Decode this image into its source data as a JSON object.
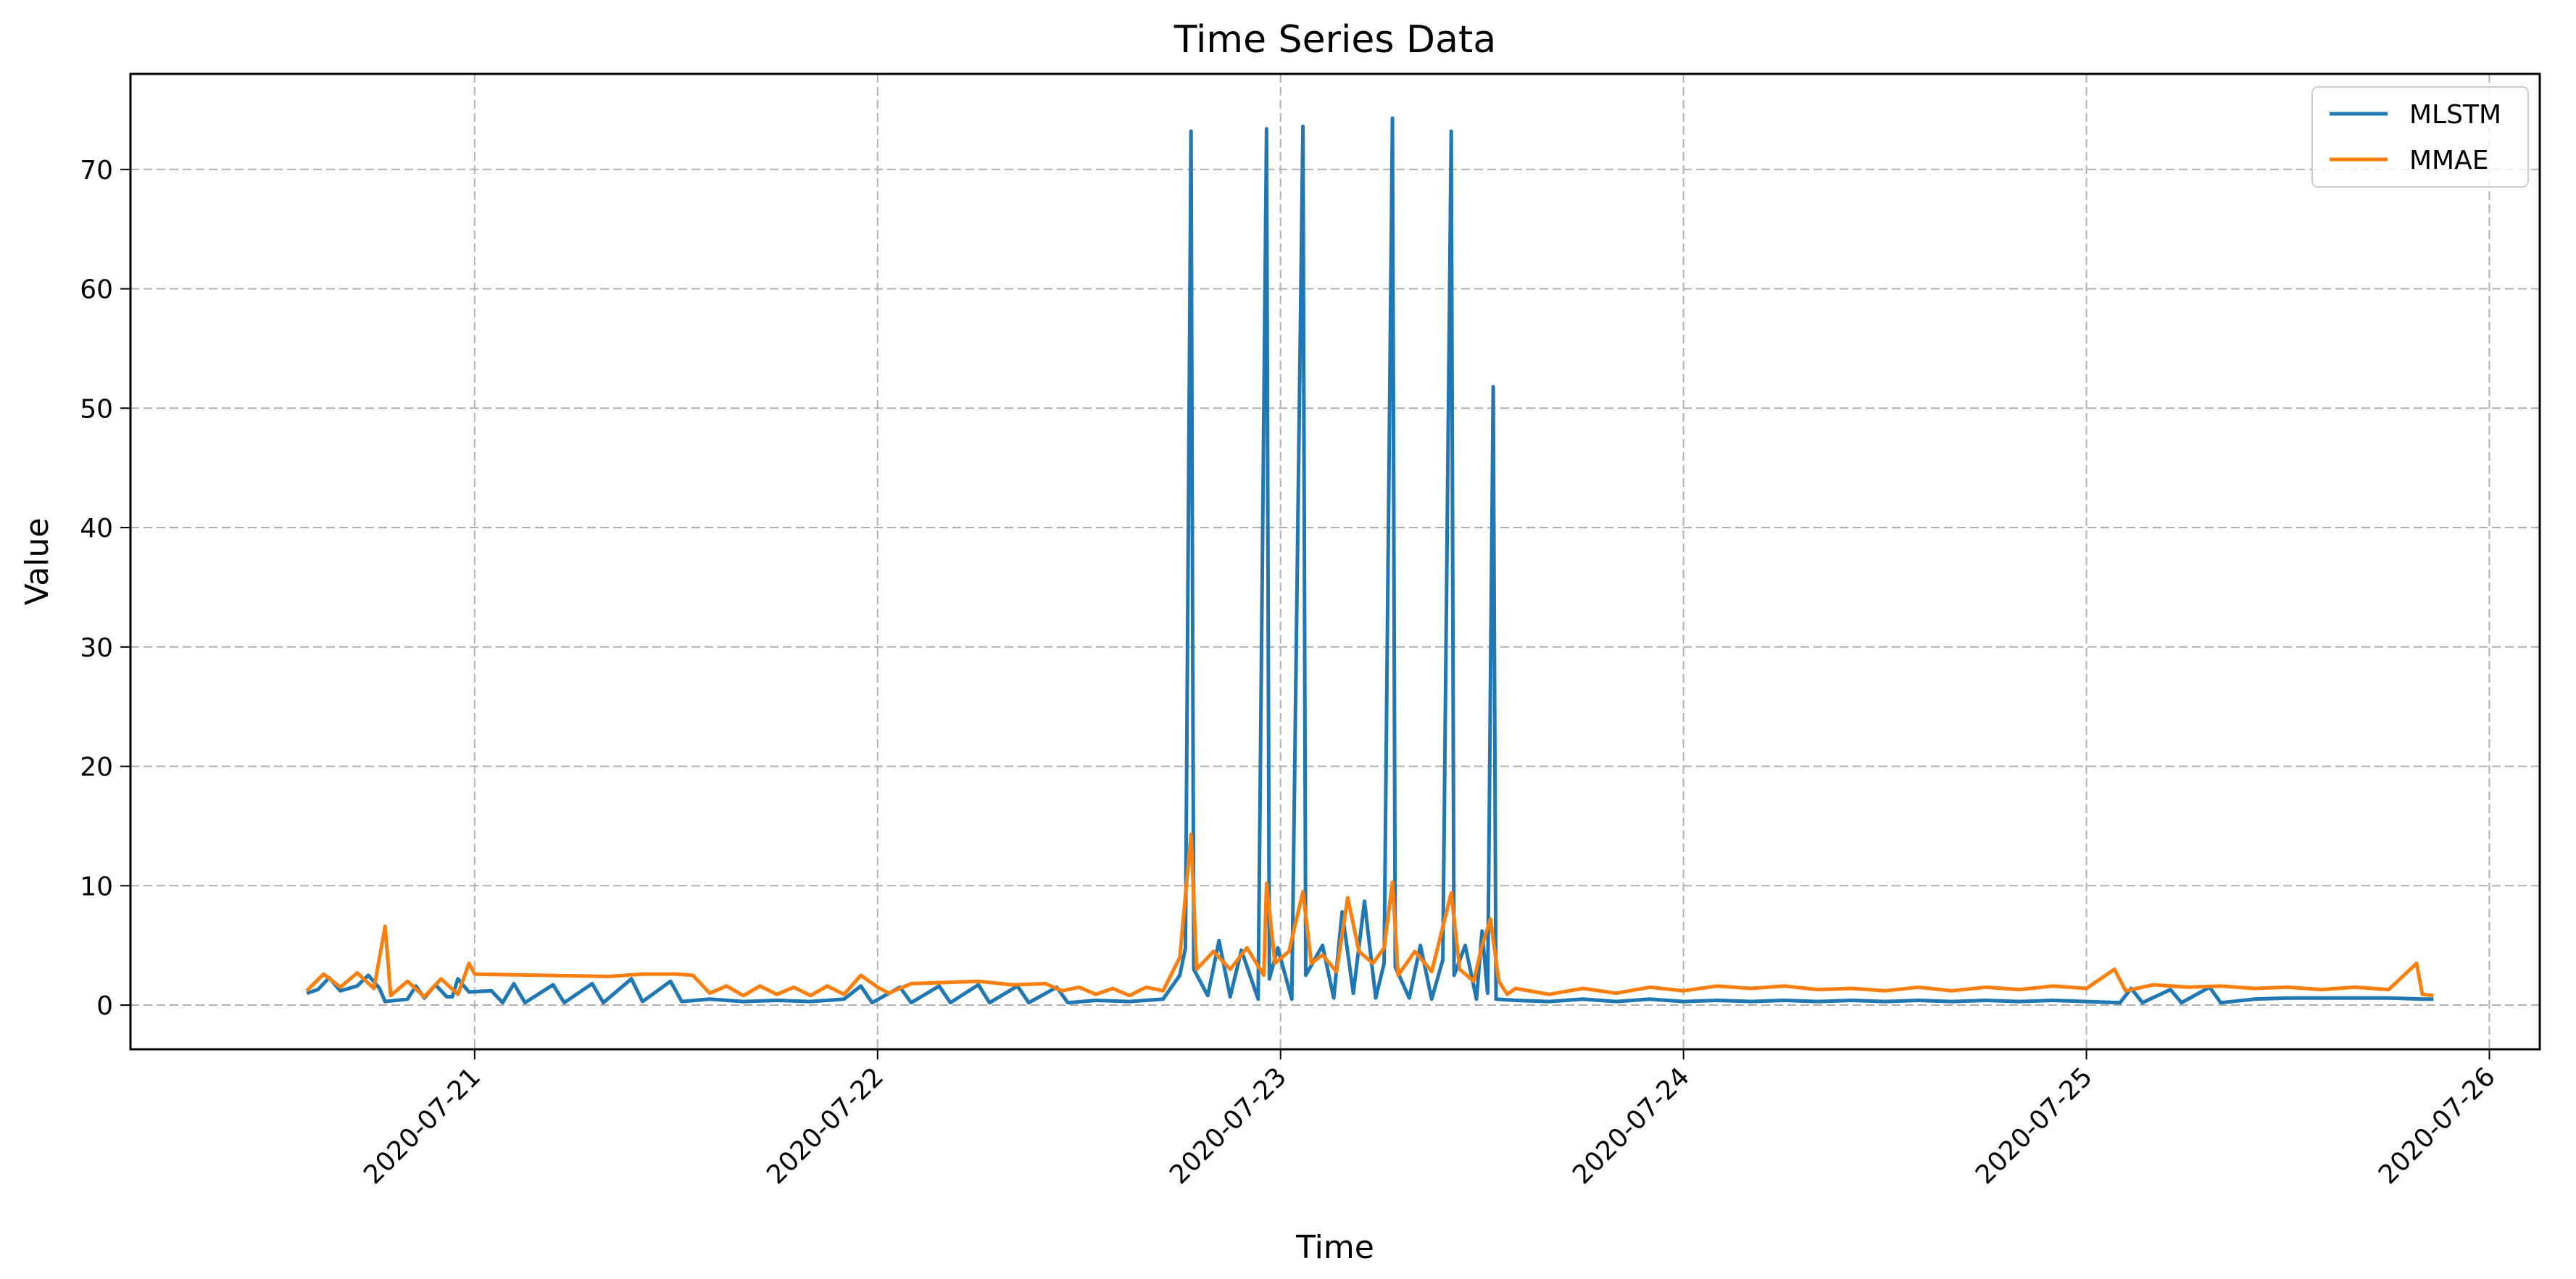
{
  "chart_data": {
    "type": "line",
    "title": "Time Series Data",
    "xlabel": "Time",
    "ylabel": "Value",
    "x_axis_type": "datetime",
    "xlim": [
      "2020-07-20T03:30",
      "2020-07-26T03:00"
    ],
    "ylim": [
      -3.7,
      78
    ],
    "x_ticks": [
      "2020-07-21",
      "2020-07-22",
      "2020-07-23",
      "2020-07-24",
      "2020-07-25",
      "2020-07-26"
    ],
    "y_ticks": [
      0,
      10,
      20,
      30,
      40,
      50,
      60,
      70
    ],
    "x_tick_rotation_deg": 45,
    "grid": true,
    "grid_style": "dashed",
    "legend_position": "upper right",
    "series": [
      {
        "name": "MLSTM",
        "color": "#1f77b4",
        "points": [
          [
            "2020-07-20T14:00",
            1.0
          ],
          [
            "2020-07-20T14:40",
            1.3
          ],
          [
            "2020-07-20T15:20",
            2.3
          ],
          [
            "2020-07-20T16:00",
            1.2
          ],
          [
            "2020-07-20T17:00",
            1.6
          ],
          [
            "2020-07-20T17:40",
            2.5
          ],
          [
            "2020-07-20T18:20",
            1.4
          ],
          [
            "2020-07-20T18:40",
            0.3
          ],
          [
            "2020-07-20T20:00",
            0.5
          ],
          [
            "2020-07-20T20:30",
            1.6
          ],
          [
            "2020-07-20T21:00",
            0.6
          ],
          [
            "2020-07-20T21:40",
            1.7
          ],
          [
            "2020-07-20T22:20",
            0.7
          ],
          [
            "2020-07-20T22:40",
            0.7
          ],
          [
            "2020-07-20T23:00",
            2.2
          ],
          [
            "2020-07-20T23:40",
            1.1
          ],
          [
            "2020-07-21T01:00",
            1.2
          ],
          [
            "2020-07-21T01:40",
            0.2
          ],
          [
            "2020-07-21T02:20",
            1.8
          ],
          [
            "2020-07-21T03:00",
            0.2
          ],
          [
            "2020-07-21T04:40",
            1.7
          ],
          [
            "2020-07-21T05:20",
            0.2
          ],
          [
            "2020-07-21T07:00",
            1.8
          ],
          [
            "2020-07-21T07:40",
            0.2
          ],
          [
            "2020-07-21T09:20",
            2.2
          ],
          [
            "2020-07-21T10:00",
            0.3
          ],
          [
            "2020-07-21T11:40",
            2.0
          ],
          [
            "2020-07-21T12:20",
            0.3
          ],
          [
            "2020-07-21T14:00",
            0.5
          ],
          [
            "2020-07-21T16:00",
            0.3
          ],
          [
            "2020-07-21T18:00",
            0.4
          ],
          [
            "2020-07-21T20:00",
            0.3
          ],
          [
            "2020-07-21T22:00",
            0.5
          ],
          [
            "2020-07-21T23:00",
            1.6
          ],
          [
            "2020-07-21T23:40",
            0.2
          ],
          [
            "2020-07-22T01:20",
            1.5
          ],
          [
            "2020-07-22T02:00",
            0.2
          ],
          [
            "2020-07-22T03:40",
            1.6
          ],
          [
            "2020-07-22T04:20",
            0.2
          ],
          [
            "2020-07-22T06:00",
            1.7
          ],
          [
            "2020-07-22T06:40",
            0.2
          ],
          [
            "2020-07-22T08:20",
            1.6
          ],
          [
            "2020-07-22T09:00",
            0.2
          ],
          [
            "2020-07-22T10:40",
            1.5
          ],
          [
            "2020-07-22T11:20",
            0.2
          ],
          [
            "2020-07-22T13:00",
            0.4
          ],
          [
            "2020-07-22T15:00",
            0.3
          ],
          [
            "2020-07-22T17:00",
            0.5
          ],
          [
            "2020-07-22T18:00",
            2.5
          ],
          [
            "2020-07-22T18:20",
            4.8
          ],
          [
            "2020-07-22T18:40",
            73.2
          ],
          [
            "2020-07-22T18:50",
            3.0
          ],
          [
            "2020-07-22T19:40",
            0.8
          ],
          [
            "2020-07-22T20:20",
            5.4
          ],
          [
            "2020-07-22T21:00",
            0.7
          ],
          [
            "2020-07-22T21:40",
            4.6
          ],
          [
            "2020-07-22T22:40",
            0.5
          ],
          [
            "2020-07-22T23:10",
            73.4
          ],
          [
            "2020-07-22T23:20",
            2.2
          ],
          [
            "2020-07-22T23:50",
            4.8
          ],
          [
            "2020-07-23T00:40",
            0.5
          ],
          [
            "2020-07-23T01:20",
            73.6
          ],
          [
            "2020-07-23T01:30",
            2.5
          ],
          [
            "2020-07-23T02:30",
            5.0
          ],
          [
            "2020-07-23T03:10",
            0.6
          ],
          [
            "2020-07-23T03:40",
            7.8
          ],
          [
            "2020-07-23T04:20",
            1.0
          ],
          [
            "2020-07-23T05:00",
            8.7
          ],
          [
            "2020-07-23T05:40",
            0.6
          ],
          [
            "2020-07-23T06:10",
            3.5
          ],
          [
            "2020-07-23T06:40",
            74.3
          ],
          [
            "2020-07-23T06:50",
            3.2
          ],
          [
            "2020-07-23T07:40",
            0.6
          ],
          [
            "2020-07-23T08:20",
            5.0
          ],
          [
            "2020-07-23T09:00",
            0.5
          ],
          [
            "2020-07-23T09:40",
            3.8
          ],
          [
            "2020-07-23T10:10",
            73.2
          ],
          [
            "2020-07-23T10:20",
            2.5
          ],
          [
            "2020-07-23T11:00",
            5.0
          ],
          [
            "2020-07-23T11:40",
            0.5
          ],
          [
            "2020-07-23T12:00",
            6.2
          ],
          [
            "2020-07-23T12:20",
            1.0
          ],
          [
            "2020-07-23T12:40",
            51.8
          ],
          [
            "2020-07-23T12:50",
            0.5
          ],
          [
            "2020-07-23T14:00",
            0.4
          ],
          [
            "2020-07-23T16:00",
            0.3
          ],
          [
            "2020-07-23T18:00",
            0.5
          ],
          [
            "2020-07-23T20:00",
            0.3
          ],
          [
            "2020-07-23T22:00",
            0.5
          ],
          [
            "2020-07-24T00:00",
            0.3
          ],
          [
            "2020-07-24T02:00",
            0.4
          ],
          [
            "2020-07-24T04:00",
            0.3
          ],
          [
            "2020-07-24T06:00",
            0.4
          ],
          [
            "2020-07-24T08:00",
            0.3
          ],
          [
            "2020-07-24T10:00",
            0.4
          ],
          [
            "2020-07-24T12:00",
            0.3
          ],
          [
            "2020-07-24T14:00",
            0.4
          ],
          [
            "2020-07-24T16:00",
            0.3
          ],
          [
            "2020-07-24T18:00",
            0.4
          ],
          [
            "2020-07-24T20:00",
            0.3
          ],
          [
            "2020-07-24T22:00",
            0.4
          ],
          [
            "2020-07-25T00:00",
            0.3
          ],
          [
            "2020-07-25T02:00",
            0.2
          ],
          [
            "2020-07-25T02:40",
            1.4
          ],
          [
            "2020-07-25T03:20",
            0.2
          ],
          [
            "2020-07-25T05:00",
            1.3
          ],
          [
            "2020-07-25T05:40",
            0.2
          ],
          [
            "2020-07-25T07:20",
            1.5
          ],
          [
            "2020-07-25T08:00",
            0.2
          ],
          [
            "2020-07-25T10:00",
            0.5
          ],
          [
            "2020-07-25T12:00",
            0.6
          ],
          [
            "2020-07-25T14:00",
            0.6
          ],
          [
            "2020-07-25T16:00",
            0.6
          ],
          [
            "2020-07-25T18:00",
            0.6
          ],
          [
            "2020-07-25T20:00",
            0.5
          ],
          [
            "2020-07-25T20:40",
            0.5
          ]
        ]
      },
      {
        "name": "MMAE",
        "color": "#ff7f0e",
        "points": [
          [
            "2020-07-20T14:00",
            1.2
          ],
          [
            "2020-07-20T15:00",
            2.6
          ],
          [
            "2020-07-20T16:00",
            1.5
          ],
          [
            "2020-07-20T17:00",
            2.7
          ],
          [
            "2020-07-20T18:00",
            1.4
          ],
          [
            "2020-07-20T18:40",
            6.6
          ],
          [
            "2020-07-20T19:00",
            0.8
          ],
          [
            "2020-07-20T20:00",
            2.0
          ],
          [
            "2020-07-20T21:00",
            0.7
          ],
          [
            "2020-07-20T22:00",
            2.2
          ],
          [
            "2020-07-20T23:00",
            0.9
          ],
          [
            "2020-07-20T23:40",
            3.5
          ],
          [
            "2020-07-21T00:00",
            2.6
          ],
          [
            "2020-07-21T04:00",
            2.5
          ],
          [
            "2020-07-21T08:00",
            2.4
          ],
          [
            "2020-07-21T10:00",
            2.6
          ],
          [
            "2020-07-21T12:00",
            2.6
          ],
          [
            "2020-07-21T13:00",
            2.5
          ],
          [
            "2020-07-21T14:00",
            1.0
          ],
          [
            "2020-07-21T15:00",
            1.6
          ],
          [
            "2020-07-21T16:00",
            0.8
          ],
          [
            "2020-07-21T17:00",
            1.6
          ],
          [
            "2020-07-21T18:00",
            0.9
          ],
          [
            "2020-07-21T19:00",
            1.5
          ],
          [
            "2020-07-21T20:00",
            0.8
          ],
          [
            "2020-07-21T21:00",
            1.6
          ],
          [
            "2020-07-21T22:00",
            0.9
          ],
          [
            "2020-07-21T23:00",
            2.5
          ],
          [
            "2020-07-21T23:30",
            2.0
          ],
          [
            "2020-07-22T00:00",
            1.5
          ],
          [
            "2020-07-22T00:40",
            1.0
          ],
          [
            "2020-07-22T02:00",
            1.8
          ],
          [
            "2020-07-22T06:00",
            2.0
          ],
          [
            "2020-07-22T08:00",
            1.7
          ],
          [
            "2020-07-22T10:00",
            1.8
          ],
          [
            "2020-07-22T11:00",
            1.2
          ],
          [
            "2020-07-22T12:00",
            1.5
          ],
          [
            "2020-07-22T13:00",
            0.9
          ],
          [
            "2020-07-22T14:00",
            1.4
          ],
          [
            "2020-07-22T15:00",
            0.8
          ],
          [
            "2020-07-22T16:00",
            1.5
          ],
          [
            "2020-07-22T17:00",
            1.2
          ],
          [
            "2020-07-22T18:00",
            4.0
          ],
          [
            "2020-07-22T18:40",
            14.3
          ],
          [
            "2020-07-22T19:00",
            3.0
          ],
          [
            "2020-07-22T20:00",
            4.5
          ],
          [
            "2020-07-22T21:00",
            3.0
          ],
          [
            "2020-07-22T22:00",
            4.8
          ],
          [
            "2020-07-22T23:00",
            2.5
          ],
          [
            "2020-07-22T23:10",
            10.2
          ],
          [
            "2020-07-22T23:40",
            3.5
          ],
          [
            "2020-07-23T00:30",
            4.5
          ],
          [
            "2020-07-23T01:20",
            9.5
          ],
          [
            "2020-07-23T01:50",
            3.5
          ],
          [
            "2020-07-23T02:30",
            4.2
          ],
          [
            "2020-07-23T03:20",
            2.8
          ],
          [
            "2020-07-23T04:00",
            9.0
          ],
          [
            "2020-07-23T04:40",
            4.5
          ],
          [
            "2020-07-23T05:30",
            3.5
          ],
          [
            "2020-07-23T06:10",
            4.8
          ],
          [
            "2020-07-23T06:40",
            10.3
          ],
          [
            "2020-07-23T07:00",
            2.5
          ],
          [
            "2020-07-23T08:00",
            4.5
          ],
          [
            "2020-07-23T09:00",
            2.8
          ],
          [
            "2020-07-23T10:10",
            9.4
          ],
          [
            "2020-07-23T10:40",
            3.0
          ],
          [
            "2020-07-23T11:30",
            2.0
          ],
          [
            "2020-07-23T12:00",
            5.0
          ],
          [
            "2020-07-23T12:30",
            7.2
          ],
          [
            "2020-07-23T13:00",
            2.0
          ],
          [
            "2020-07-23T13:30",
            0.9
          ],
          [
            "2020-07-23T14:00",
            1.4
          ],
          [
            "2020-07-23T16:00",
            0.9
          ],
          [
            "2020-07-23T18:00",
            1.4
          ],
          [
            "2020-07-23T20:00",
            1.0
          ],
          [
            "2020-07-23T22:00",
            1.5
          ],
          [
            "2020-07-24T00:00",
            1.2
          ],
          [
            "2020-07-24T02:00",
            1.6
          ],
          [
            "2020-07-24T04:00",
            1.4
          ],
          [
            "2020-07-24T06:00",
            1.6
          ],
          [
            "2020-07-24T08:00",
            1.3
          ],
          [
            "2020-07-24T10:00",
            1.4
          ],
          [
            "2020-07-24T12:00",
            1.2
          ],
          [
            "2020-07-24T14:00",
            1.5
          ],
          [
            "2020-07-24T16:00",
            1.2
          ],
          [
            "2020-07-24T18:00",
            1.5
          ],
          [
            "2020-07-24T20:00",
            1.3
          ],
          [
            "2020-07-24T22:00",
            1.6
          ],
          [
            "2020-07-25T00:00",
            1.4
          ],
          [
            "2020-07-25T01:40",
            3.0
          ],
          [
            "2020-07-25T02:20",
            1.2
          ],
          [
            "2020-07-25T04:00",
            1.7
          ],
          [
            "2020-07-25T06:00",
            1.5
          ],
          [
            "2020-07-25T08:00",
            1.6
          ],
          [
            "2020-07-25T10:00",
            1.4
          ],
          [
            "2020-07-25T12:00",
            1.5
          ],
          [
            "2020-07-25T14:00",
            1.3
          ],
          [
            "2020-07-25T16:00",
            1.5
          ],
          [
            "2020-07-25T18:00",
            1.3
          ],
          [
            "2020-07-25T19:40",
            3.5
          ],
          [
            "2020-07-25T20:00",
            0.9
          ],
          [
            "2020-07-25T20:40",
            0.8
          ]
        ]
      }
    ]
  }
}
